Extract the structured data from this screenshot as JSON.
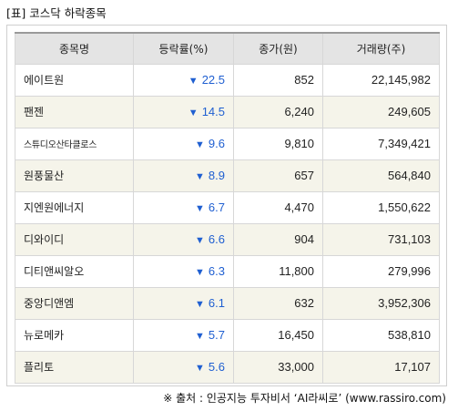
{
  "title": "[표] 코스닥 하락종목",
  "headers": {
    "name": "종목명",
    "rate": "등락률(%)",
    "price": "종가(원)",
    "volume": "거래량(주)"
  },
  "down_arrow": "▼",
  "colors": {
    "rate_text": "#1f5fd1",
    "header_bg": "#e4e4e4",
    "stripe_bg": "#f5f4ea"
  },
  "rows": [
    {
      "name": "에이트원",
      "rate": "22.5",
      "price": "852",
      "volume": "22,145,982"
    },
    {
      "name": "팬젠",
      "rate": "14.5",
      "price": "6,240",
      "volume": "249,605"
    },
    {
      "name": "스튜디오산타클로스",
      "rate": "9.6",
      "price": "9,810",
      "volume": "7,349,421"
    },
    {
      "name": "원풍물산",
      "rate": "8.9",
      "price": "657",
      "volume": "564,840"
    },
    {
      "name": "지엔원에너지",
      "rate": "6.7",
      "price": "4,470",
      "volume": "1,550,622"
    },
    {
      "name": "디와이디",
      "rate": "6.6",
      "price": "904",
      "volume": "731,103"
    },
    {
      "name": "디티앤씨알오",
      "rate": "6.3",
      "price": "11,800",
      "volume": "279,996"
    },
    {
      "name": "중앙디앤엠",
      "rate": "6.1",
      "price": "632",
      "volume": "3,952,306"
    },
    {
      "name": "뉴로메카",
      "rate": "5.7",
      "price": "16,450",
      "volume": "538,810"
    },
    {
      "name": "플리토",
      "rate": "5.6",
      "price": "33,000",
      "volume": "17,107"
    }
  ],
  "source": "※ 출처 : 인공지능 투자비서 ‘AI라씨로’ (www.rassiro.com)"
}
